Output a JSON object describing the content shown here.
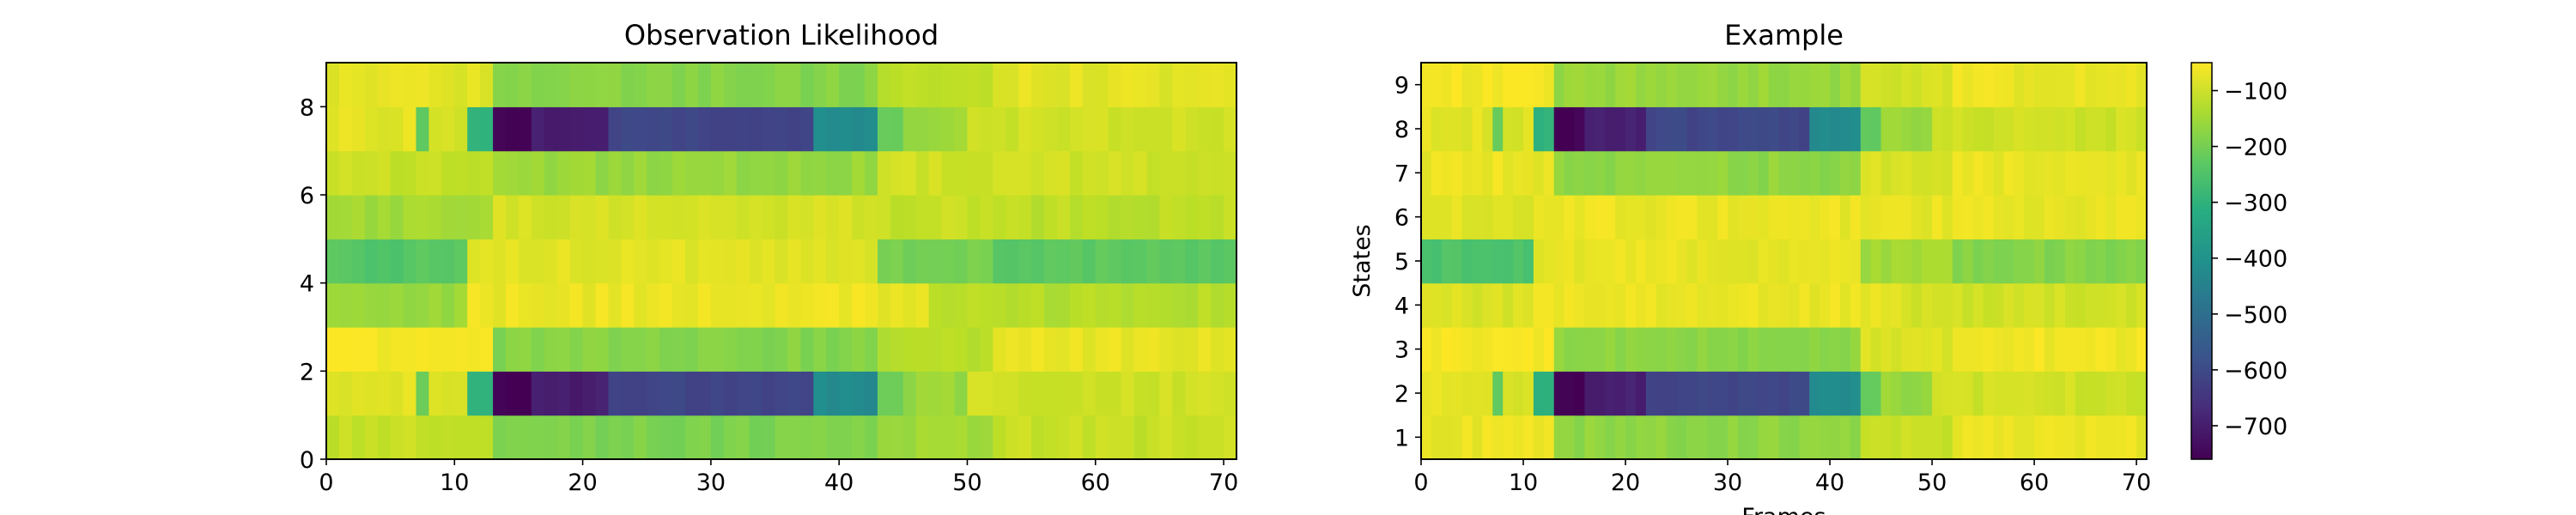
{
  "chart_data": [
    {
      "type": "heatmap",
      "title": "Observation Likelihood",
      "xlabel": "",
      "ylabel": "",
      "xlim": [
        0,
        71
      ],
      "ylim": [
        0,
        9
      ],
      "x_ticks": [
        "0",
        "10",
        "20",
        "30",
        "40",
        "50",
        "60",
        "70"
      ],
      "y_ticks": [
        "0",
        "2",
        "4",
        "6",
        "8"
      ],
      "colormap": "viridis",
      "value_range": [
        -760,
        -50
      ],
      "rows": [
        {
          "state": 0,
          "levels": [
            [
              0,
              -110
            ],
            [
              13,
              -190
            ],
            [
              43,
              -150
            ],
            [
              52,
              -110
            ]
          ]
        },
        {
          "state": 1,
          "levels": [
            [
              0,
              -80
            ],
            [
              7,
              -220
            ],
            [
              8,
              -90
            ],
            [
              11,
              -300
            ],
            [
              13,
              -760
            ],
            [
              16,
              -700
            ],
            [
              22,
              -610
            ],
            [
              38,
              -420
            ],
            [
              43,
              -220
            ],
            [
              45,
              -160
            ],
            [
              50,
              -100
            ]
          ]
        },
        {
          "state": 2,
          "levels": [
            [
              0,
              -60
            ],
            [
              13,
              -180
            ],
            [
              43,
              -130
            ],
            [
              52,
              -75
            ]
          ]
        },
        {
          "state": 3,
          "levels": [
            [
              0,
              -160
            ],
            [
              11,
              -70
            ],
            [
              47,
              -130
            ]
          ]
        },
        {
          "state": 4,
          "levels": [
            [
              0,
              -240
            ],
            [
              11,
              -80
            ],
            [
              43,
              -200
            ],
            [
              52,
              -230
            ]
          ]
        },
        {
          "state": 5,
          "levels": [
            [
              0,
              -150
            ],
            [
              13,
              -95
            ],
            [
              43,
              -110
            ],
            [
              52,
              -120
            ]
          ]
        },
        {
          "state": 6,
          "levels": [
            [
              0,
              -110
            ],
            [
              13,
              -160
            ],
            [
              43,
              -100
            ]
          ]
        },
        {
          "state": 7,
          "levels": [
            [
              0,
              -80
            ],
            [
              7,
              -220
            ],
            [
              8,
              -90
            ],
            [
              11,
              -300
            ],
            [
              13,
              -760
            ],
            [
              16,
              -700
            ],
            [
              22,
              -610
            ],
            [
              38,
              -420
            ],
            [
              43,
              -220
            ],
            [
              45,
              -160
            ],
            [
              50,
              -100
            ]
          ]
        },
        {
          "state": 8,
          "levels": [
            [
              0,
              -80
            ],
            [
              13,
              -180
            ],
            [
              43,
              -120
            ],
            [
              52,
              -80
            ]
          ]
        }
      ]
    },
    {
      "type": "heatmap",
      "title": "Example",
      "xlabel": "Frames",
      "ylabel": "States",
      "xlim": [
        0,
        71
      ],
      "ylim": [
        0,
        9
      ],
      "x_ticks": [
        "0",
        "10",
        "20",
        "30",
        "40",
        "50",
        "60",
        "70"
      ],
      "y_ticks": [
        "1",
        "2",
        "3",
        "4",
        "5",
        "6",
        "7",
        "8",
        "9"
      ],
      "colormap": "viridis",
      "value_range": [
        -760,
        -50
      ],
      "colorbar_ticks": [
        "−100",
        "−200",
        "−300",
        "−400",
        "−500",
        "−600",
        "−700"
      ],
      "colorbar_values": [
        -100,
        -200,
        -300,
        -400,
        -500,
        -600,
        -700
      ],
      "rows": [
        {
          "state": 1,
          "levels": [
            [
              0,
              -70
            ],
            [
              13,
              -170
            ],
            [
              43,
              -110
            ],
            [
              52,
              -70
            ]
          ]
        },
        {
          "state": 2,
          "levels": [
            [
              0,
              -80
            ],
            [
              7,
              -220
            ],
            [
              8,
              -90
            ],
            [
              11,
              -300
            ],
            [
              13,
              -760
            ],
            [
              16,
              -700
            ],
            [
              22,
              -610
            ],
            [
              38,
              -420
            ],
            [
              43,
              -220
            ],
            [
              45,
              -160
            ],
            [
              50,
              -100
            ]
          ]
        },
        {
          "state": 3,
          "levels": [
            [
              0,
              -60
            ],
            [
              13,
              -170
            ],
            [
              43,
              -90
            ],
            [
              52,
              -65
            ]
          ]
        },
        {
          "state": 4,
          "levels": [
            [
              0,
              -90
            ],
            [
              11,
              -70
            ],
            [
              47,
              -100
            ]
          ]
        },
        {
          "state": 5,
          "levels": [
            [
              0,
              -250
            ],
            [
              11,
              -75
            ],
            [
              43,
              -150
            ],
            [
              52,
              -180
            ]
          ]
        },
        {
          "state": 6,
          "levels": [
            [
              0,
              -80
            ],
            [
              13,
              -70
            ],
            [
              43,
              -75
            ]
          ]
        },
        {
          "state": 7,
          "levels": [
            [
              0,
              -70
            ],
            [
              13,
              -170
            ],
            [
              43,
              -90
            ],
            [
              52,
              -70
            ]
          ]
        },
        {
          "state": 8,
          "levels": [
            [
              0,
              -80
            ],
            [
              7,
              -220
            ],
            [
              8,
              -90
            ],
            [
              11,
              -300
            ],
            [
              13,
              -760
            ],
            [
              16,
              -700
            ],
            [
              22,
              -610
            ],
            [
              38,
              -420
            ],
            [
              43,
              -220
            ],
            [
              45,
              -160
            ],
            [
              50,
              -100
            ]
          ]
        },
        {
          "state": 9,
          "levels": [
            [
              0,
              -60
            ],
            [
              13,
              -160
            ],
            [
              43,
              -95
            ],
            [
              52,
              -70
            ]
          ]
        }
      ]
    }
  ]
}
